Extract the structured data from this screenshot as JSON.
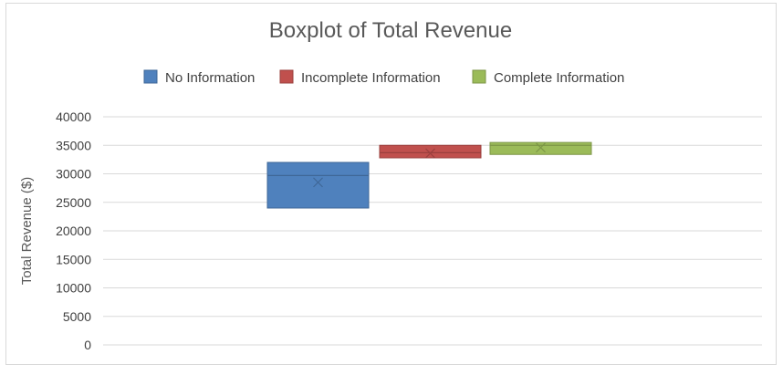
{
  "chart_data": {
    "type": "boxplot",
    "title": "Boxplot of Total Revenue",
    "xlabel": "",
    "ylabel": "Total Revenue ($)",
    "ylim": [
      0,
      40000
    ],
    "yticks": [
      0,
      5000,
      10000,
      15000,
      20000,
      25000,
      30000,
      35000,
      40000
    ],
    "grid": true,
    "legend_position": "top",
    "series": [
      {
        "name": "No Information",
        "color": "#4f81bd",
        "min": 24000,
        "q1": 24000,
        "median": 29700,
        "q3": 32000,
        "max": 32000,
        "mean": 28500
      },
      {
        "name": "Incomplete Information",
        "color": "#c0504d",
        "min": 32800,
        "q1": 32800,
        "median": 33700,
        "q3": 35000,
        "max": 35000,
        "mean": 33600
      },
      {
        "name": "Complete Information",
        "color": "#9bbb59",
        "min": 33400,
        "q1": 33400,
        "median": 35000,
        "q3": 35500,
        "max": 35500,
        "mean": 34600
      }
    ]
  }
}
